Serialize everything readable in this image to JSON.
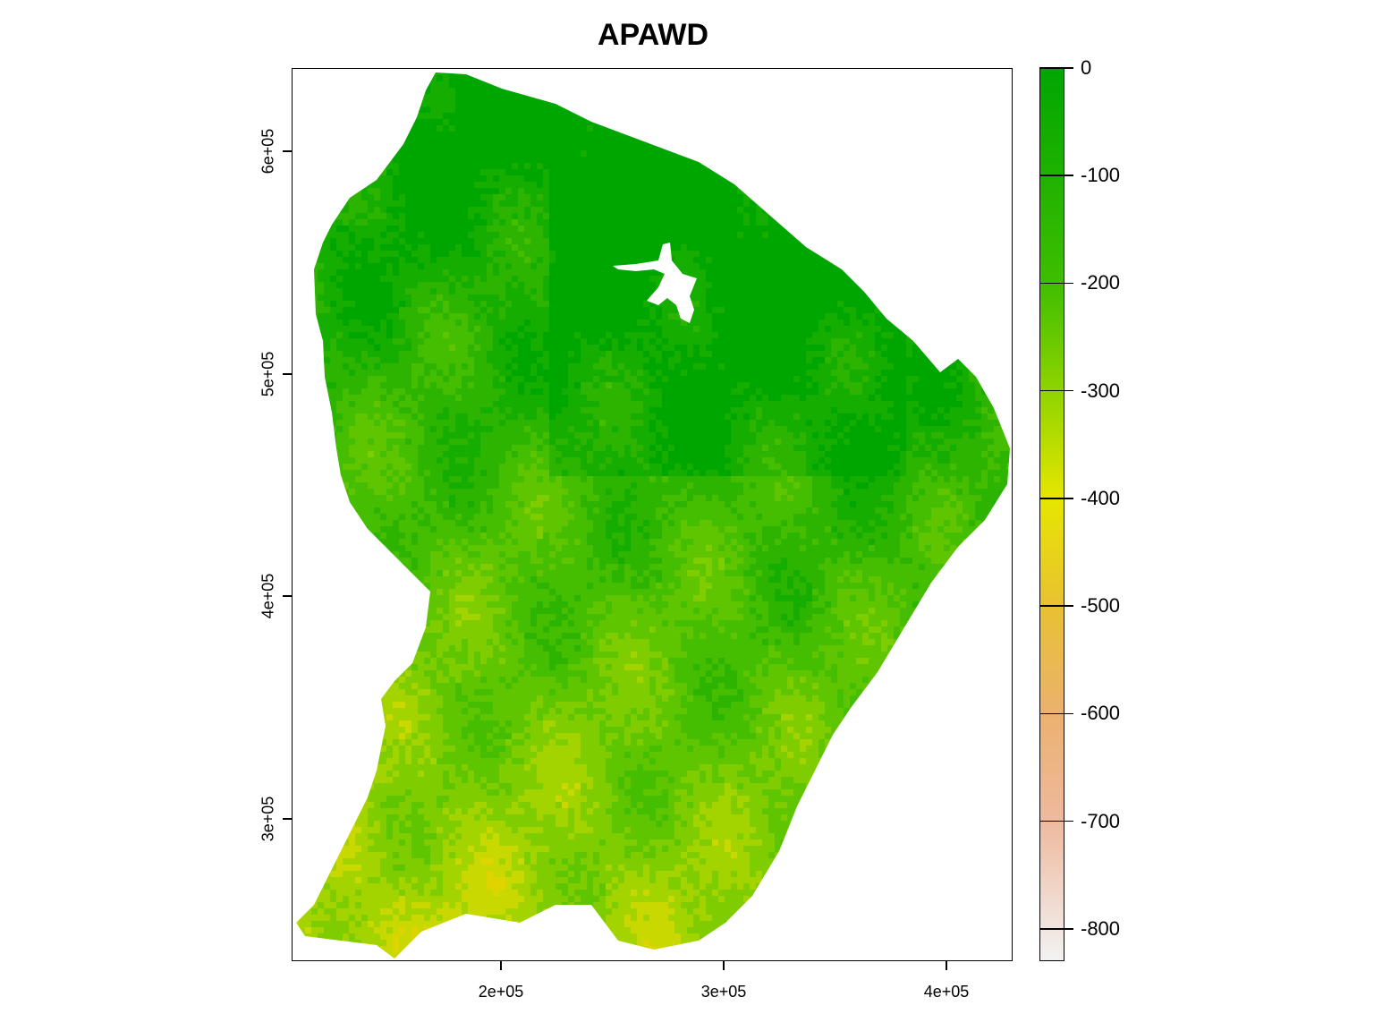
{
  "title": "APAWD",
  "map": {
    "x_axis": {
      "ticks": [
        "2e+05",
        "3e+05",
        "4e+05"
      ],
      "tick_values": [
        200000,
        300000,
        400000
      ],
      "range": [
        105000,
        430000
      ]
    },
    "y_axis": {
      "ticks": [
        "3e+05",
        "4e+05",
        "5e+05",
        "6e+05"
      ],
      "tick_values": [
        300000,
        400000,
        500000,
        600000
      ],
      "range": [
        235000,
        636000
      ]
    },
    "nodata_color": "#ffffff"
  },
  "legend": {
    "labels": [
      "0",
      "-100",
      "-200",
      "-300",
      "-400",
      "-500",
      "-600",
      "-700",
      "-800"
    ],
    "values": [
      0,
      -100,
      -200,
      -300,
      -400,
      -500,
      -600,
      -700,
      -800
    ],
    "range": [
      -830,
      0
    ],
    "color_stops": [
      {
        "value": 0,
        "color": "#00a600"
      },
      {
        "value": -200,
        "color": "#3fbe00"
      },
      {
        "value": -300,
        "color": "#8fd400"
      },
      {
        "value": -400,
        "color": "#e6e600"
      },
      {
        "value": -500,
        "color": "#e8c132"
      },
      {
        "value": -600,
        "color": "#ebb16e"
      },
      {
        "value": -700,
        "color": "#eeb99f"
      },
      {
        "value": -830,
        "color": "#f2f2f2"
      }
    ]
  }
}
